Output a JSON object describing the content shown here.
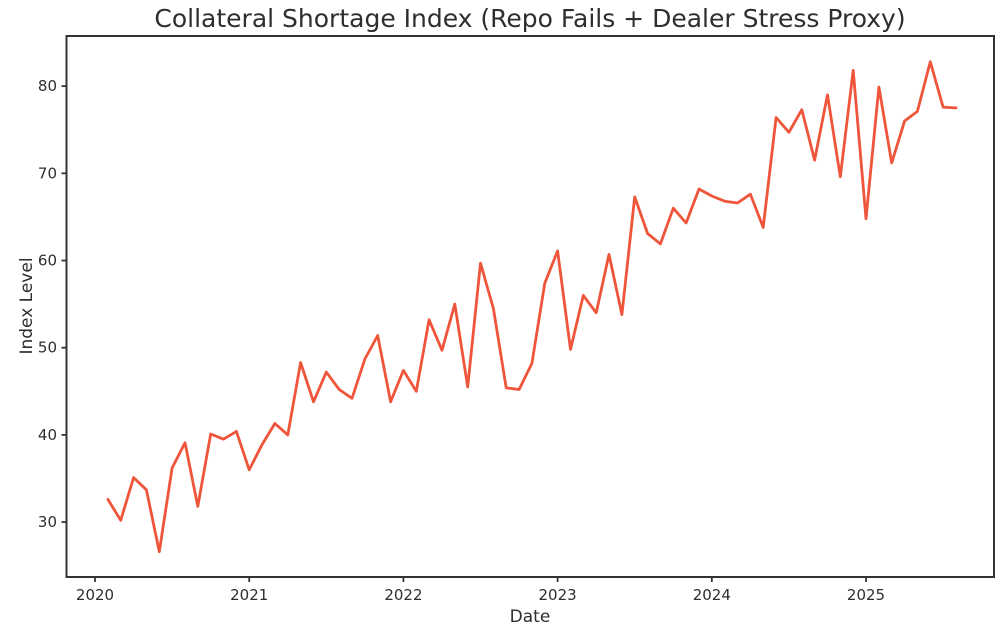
{
  "figure": {
    "title": "Collateral Shortage Index (Repo Fails + Dealer Stress Proxy)",
    "xlabel": "Date",
    "ylabel": "Index Level"
  },
  "colors": {
    "line": "#EF553B",
    "axis": "#333333",
    "background": "#ffffff"
  },
  "chart_data": {
    "type": "line",
    "title": "Collateral Shortage Index (Repo Fails + Dealer Stress Proxy)",
    "xlabel": "Date",
    "ylabel": "Index Level",
    "series_name": "Collateral Shortage Index",
    "x": [
      "2020-01",
      "2020-02",
      "2020-03",
      "2020-04",
      "2020-05",
      "2020-06",
      "2020-07",
      "2020-08",
      "2020-09",
      "2020-10",
      "2020-11",
      "2020-12",
      "2021-01",
      "2021-02",
      "2021-03",
      "2021-04",
      "2021-05",
      "2021-06",
      "2021-07",
      "2021-08",
      "2021-09",
      "2021-10",
      "2021-11",
      "2021-12",
      "2022-01",
      "2022-02",
      "2022-03",
      "2022-04",
      "2022-05",
      "2022-06",
      "2022-07",
      "2022-08",
      "2022-09",
      "2022-10",
      "2022-11",
      "2022-12",
      "2023-01",
      "2023-02",
      "2023-03",
      "2023-04",
      "2023-05",
      "2023-06",
      "2023-07",
      "2023-08",
      "2023-09",
      "2023-10",
      "2023-11",
      "2023-12",
      "2024-01",
      "2024-02",
      "2024-03",
      "2024-04",
      "2024-05",
      "2024-06",
      "2024-07",
      "2024-08",
      "2024-09",
      "2024-10",
      "2024-11",
      "2024-12",
      "2025-01",
      "2025-02",
      "2025-03",
      "2025-04",
      "2025-05",
      "2025-06",
      "2025-07"
    ],
    "values": [
      32.6,
      30.2,
      35.1,
      33.7,
      26.6,
      36.2,
      39.1,
      31.8,
      40.1,
      39.5,
      40.4,
      36.0,
      38.9,
      41.3,
      40.0,
      48.3,
      43.8,
      47.2,
      45.2,
      44.2,
      48.7,
      51.4,
      43.8,
      47.4,
      45.0,
      53.2,
      49.7,
      55.0,
      45.5,
      59.7,
      54.5,
      45.4,
      45.2,
      48.2,
      57.4,
      61.1,
      49.8,
      56.0,
      54.0,
      60.7,
      53.8,
      67.3,
      63.1,
      61.9,
      66.0,
      64.3,
      68.2,
      67.4,
      66.8,
      66.6,
      67.6,
      63.8,
      76.4,
      74.7,
      77.3,
      71.5,
      79.0,
      69.6,
      81.8,
      64.8,
      79.9,
      71.2,
      76.0,
      77.1,
      82.8,
      77.6,
      77.5
    ],
    "xticks": [
      2020,
      2021,
      2022,
      2023,
      2024,
      2025
    ],
    "yticks": [
      30,
      40,
      50,
      60,
      70,
      80
    ],
    "xlim": [
      2019.815,
      2025.83
    ],
    "ylim": [
      23.7,
      85.75
    ],
    "grid": false,
    "legend": "none",
    "marker": "none"
  }
}
